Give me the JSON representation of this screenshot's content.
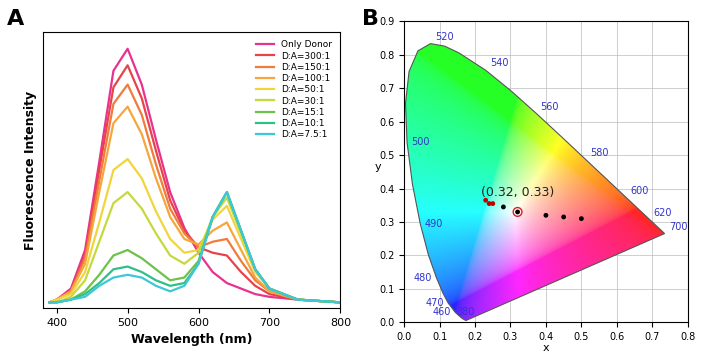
{
  "chart_data": [
    {
      "type": "line",
      "panel_label": "A",
      "x_label": "Wavelength (nm)",
      "y_label": "Fluorescence Intensity",
      "x": [
        390,
        400,
        420,
        440,
        460,
        480,
        500,
        520,
        540,
        560,
        580,
        600,
        620,
        640,
        660,
        680,
        700,
        740,
        800
      ],
      "series": [
        {
          "name": "Only Donor",
          "color": "#e8338e",
          "values": [
            0.02,
            0.03,
            0.07,
            0.21,
            0.53,
            0.86,
            0.94,
            0.81,
            0.61,
            0.42,
            0.29,
            0.2,
            0.13,
            0.09,
            0.07,
            0.05,
            0.04,
            0.03,
            0.02
          ]
        },
        {
          "name": "D:A=300:1",
          "color": "#e8434a",
          "values": [
            0.02,
            0.03,
            0.06,
            0.19,
            0.5,
            0.8,
            0.88,
            0.76,
            0.57,
            0.39,
            0.28,
            0.22,
            0.2,
            0.19,
            0.13,
            0.08,
            0.05,
            0.03,
            0.02
          ]
        },
        {
          "name": "D:A=150:1",
          "color": "#f07b3c",
          "values": [
            0.02,
            0.03,
            0.06,
            0.18,
            0.46,
            0.74,
            0.81,
            0.7,
            0.52,
            0.36,
            0.27,
            0.22,
            0.24,
            0.25,
            0.17,
            0.1,
            0.06,
            0.03,
            0.02
          ]
        },
        {
          "name": "D:A=100:1",
          "color": "#f5a63c",
          "values": [
            0.02,
            0.03,
            0.06,
            0.16,
            0.42,
            0.67,
            0.73,
            0.63,
            0.47,
            0.33,
            0.25,
            0.23,
            0.28,
            0.31,
            0.21,
            0.11,
            0.06,
            0.03,
            0.02
          ]
        },
        {
          "name": "D:A=50:1",
          "color": "#f2d43c",
          "values": [
            0.02,
            0.03,
            0.05,
            0.13,
            0.31,
            0.5,
            0.54,
            0.47,
            0.35,
            0.25,
            0.2,
            0.21,
            0.32,
            0.37,
            0.25,
            0.13,
            0.07,
            0.03,
            0.02
          ]
        },
        {
          "name": "D:A=30:1",
          "color": "#c5d93c",
          "values": [
            0.02,
            0.02,
            0.04,
            0.1,
            0.24,
            0.38,
            0.42,
            0.36,
            0.27,
            0.19,
            0.16,
            0.2,
            0.33,
            0.4,
            0.27,
            0.14,
            0.07,
            0.03,
            0.02
          ]
        },
        {
          "name": "D:A=15:1",
          "color": "#6cc24a",
          "values": [
            0.02,
            0.02,
            0.03,
            0.06,
            0.12,
            0.19,
            0.21,
            0.18,
            0.14,
            0.1,
            0.11,
            0.17,
            0.33,
            0.42,
            0.28,
            0.14,
            0.07,
            0.03,
            0.02
          ]
        },
        {
          "name": "D:A=10:1",
          "color": "#2fbf8a",
          "values": [
            0.02,
            0.02,
            0.03,
            0.05,
            0.09,
            0.14,
            0.15,
            0.13,
            0.1,
            0.08,
            0.09,
            0.16,
            0.33,
            0.42,
            0.28,
            0.14,
            0.07,
            0.03,
            0.02
          ]
        },
        {
          "name": "D:A=7.5:1",
          "color": "#3ec7d6",
          "values": [
            0.02,
            0.02,
            0.03,
            0.04,
            0.08,
            0.11,
            0.12,
            0.11,
            0.08,
            0.06,
            0.08,
            0.16,
            0.33,
            0.42,
            0.28,
            0.14,
            0.07,
            0.03,
            0.02
          ]
        }
      ],
      "xlim": [
        380,
        800
      ],
      "xticks": [
        400,
        500,
        600,
        700,
        800
      ],
      "ylim": [
        0,
        1.0
      ],
      "yticks": [],
      "tick_labels": "x",
      "legend": "upper right",
      "grid": false
    },
    {
      "type": "scatter",
      "panel_label": "B",
      "x_label": "x",
      "y_label": "y",
      "spectral_locus": {
        "wavelengths": [
          380,
          440,
          450,
          460,
          470,
          475,
          480,
          485,
          490,
          495,
          500,
          505,
          510,
          515,
          520,
          525,
          530,
          540,
          550,
          560,
          570,
          580,
          590,
          600,
          620,
          640,
          700
        ],
        "x": [
          0.1741,
          0.1644,
          0.1566,
          0.144,
          0.1241,
          0.1096,
          0.0913,
          0.0687,
          0.0454,
          0.0235,
          0.0082,
          0.0039,
          0.0139,
          0.0389,
          0.0743,
          0.1142,
          0.1547,
          0.2296,
          0.3016,
          0.3731,
          0.4441,
          0.5125,
          0.5752,
          0.627,
          0.6915,
          0.719,
          0.7347
        ],
        "y": [
          0.005,
          0.0109,
          0.0177,
          0.0297,
          0.0578,
          0.0868,
          0.1327,
          0.2007,
          0.295,
          0.4127,
          0.5384,
          0.6548,
          0.7502,
          0.812,
          0.8338,
          0.8262,
          0.8059,
          0.7543,
          0.6923,
          0.6245,
          0.5547,
          0.4866,
          0.4242,
          0.3725,
          0.3083,
          0.2809,
          0.2653
        ]
      },
      "locus_labels": [
        380,
        460,
        470,
        480,
        490,
        500,
        520,
        540,
        560,
        580,
        600,
        620,
        700
      ],
      "x": [
        0.23,
        0.24,
        0.25,
        0.28,
        0.32,
        0.4,
        0.45,
        0.5
      ],
      "y": [
        0.365,
        0.355,
        0.355,
        0.345,
        0.33,
        0.32,
        0.315,
        0.31
      ],
      "colors": [
        "#c00000",
        "#c00000",
        "#c00000",
        "#000000",
        "#000000",
        "#000000",
        "#000000",
        "#000000"
      ],
      "annotation": {
        "x": 0.32,
        "y": 0.33,
        "text": "(0.32, 0.33)",
        "color": "#d62020"
      },
      "xlim": [
        0.0,
        0.8
      ],
      "xticks": [
        0.0,
        0.1,
        0.2,
        0.3,
        0.4,
        0.5,
        0.6,
        0.7,
        0.8
      ],
      "ylim": [
        0.0,
        0.9
      ],
      "yticks": [
        0.0,
        0.1,
        0.2,
        0.3,
        0.4,
        0.5,
        0.6,
        0.7,
        0.8,
        0.9
      ],
      "grid": true
    }
  ]
}
